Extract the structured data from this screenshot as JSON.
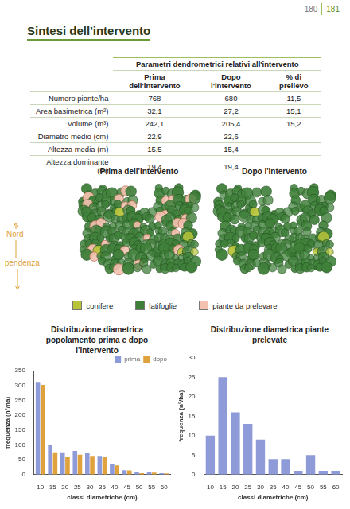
{
  "page_numbers": [
    "180",
    "181"
  ],
  "title": "Sintesi dell'intervento",
  "table": {
    "title": "Parametri dendrometrici relativi all'intervento",
    "columns": [
      "Prima dell'intervento",
      "Dopo l'intervento",
      "% di prelievo"
    ],
    "rows": [
      [
        "Numero piante/ha",
        "768",
        "680",
        "11,5"
      ],
      [
        "Area basimetrica (m²)",
        "32,1",
        "27,2",
        "15,1"
      ],
      [
        "Volume (m³)",
        "242,1",
        "205,4",
        "15,2"
      ],
      [
        "Diametro medio (cm)",
        "22,9",
        "22,6",
        null
      ],
      [
        "Altezza media (m)",
        "15,5",
        "15,4",
        null
      ],
      [
        "Altezza dominante (m)",
        "19,4",
        "19,4",
        null
      ]
    ]
  },
  "maps": {
    "titles": [
      "Prima dell'intervento",
      "Dopo l'intervento"
    ],
    "labels": [
      "Nord",
      "pendenza"
    ],
    "legend": [
      {
        "label": "conifere",
        "color": "#b8c43a"
      },
      {
        "label": "latifoglie",
        "color": "#3f7f3a"
      },
      {
        "label": "piante da prelevare",
        "color": "#f4c1b0"
      }
    ]
  },
  "chart_data": [
    {
      "type": "bar",
      "title": "Distribuzione diametrica popolamento prima e dopo l'intervento",
      "x_label": "classi diametriche (cm)",
      "y_label": "frequenza (n°/ha)",
      "categories": [
        10,
        15,
        20,
        25,
        30,
        35,
        40,
        45,
        50,
        55,
        60
      ],
      "series": [
        {
          "name": "prima",
          "color": "#8e9bd8",
          "values": [
            312,
            100,
            75,
            80,
            72,
            63,
            35,
            15,
            10,
            8,
            5
          ]
        },
        {
          "name": "dopo",
          "color": "#e0a23c",
          "values": [
            302,
            75,
            59,
            67,
            63,
            59,
            31,
            14,
            5,
            7,
            4
          ]
        }
      ],
      "ylim": [
        0,
        350
      ],
      "yticks": [
        0,
        50,
        100,
        150,
        200,
        250,
        300,
        350
      ],
      "grid": false,
      "legend": "top-right"
    },
    {
      "type": "bar",
      "title": "Distribuzione diametrica piante prelevate",
      "x_label": "classi diametriche (cm)",
      "y_label": "frequenza (n°/ha)",
      "categories": [
        10,
        15,
        20,
        25,
        30,
        35,
        40,
        45,
        50,
        55,
        60
      ],
      "values": [
        10,
        25,
        16,
        13,
        9,
        4,
        4,
        1,
        5,
        1,
        1
      ],
      "color": "#8e9bd8",
      "ylim": [
        0,
        30
      ],
      "yticks": [
        0,
        5,
        10,
        15,
        20,
        25,
        30
      ],
      "grid": false
    }
  ]
}
